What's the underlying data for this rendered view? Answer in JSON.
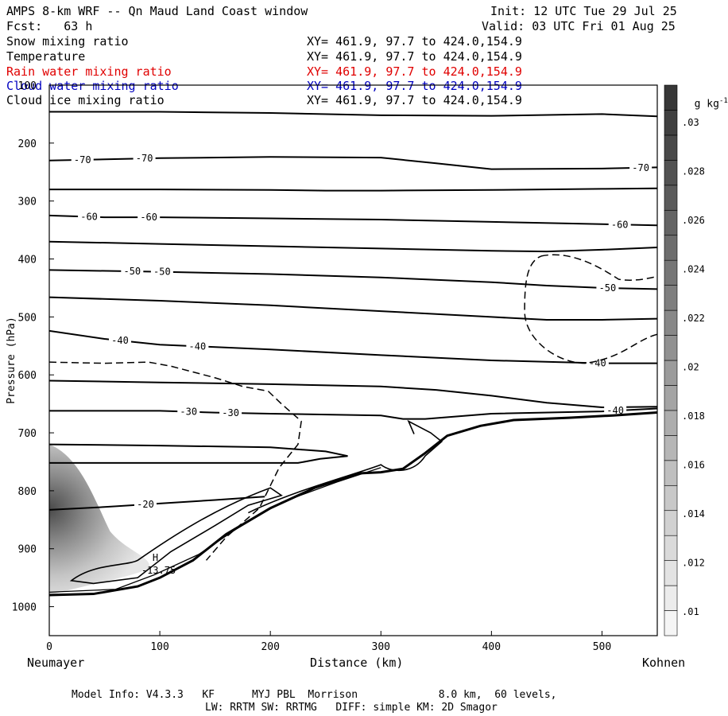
{
  "header": {
    "title": "AMPS 8-km WRF -- Qn Maud Land Coast window",
    "forecast": "Fcst:   63 h",
    "init": "Init: 12 UTC Tue 29 Jul 25",
    "valid": "Valid: 03 UTC Fri 01 Aug 25"
  },
  "fields": [
    {
      "name": "Snow mixing ratio",
      "xy": "XY= 461.9, 97.7 to 424.0,154.9",
      "color": "#000000"
    },
    {
      "name": "Temperature",
      "xy": "XY= 461.9, 97.7 to 424.0,154.9",
      "color": "#000000"
    },
    {
      "name": "Rain water mixing ratio",
      "xy": "XY= 461.9, 97.7 to 424.0,154.9",
      "color": "#e00000"
    },
    {
      "name": "Cloud water mixing ratio",
      "xy": "XY= 461.9, 97.7 to 424.0,154.9",
      "color": "#0000c0"
    },
    {
      "name": "Cloud ice mixing ratio",
      "xy": "XY= 461.9, 97.7 to 424.0,154.9",
      "color": "#000000"
    }
  ],
  "footer": {
    "line1": "Model Info: V4.3.3   KF      MYJ PBL  Morrison             8.0 km,  60 levels,",
    "line2": "LW: RRTM SW: RRTMG   DIFF: simple KM: 2D Smagor"
  },
  "chart_data": {
    "type": "contour",
    "xlabel": "Distance (km)",
    "ylabel": "Pressure (hPa)",
    "x_range": [
      0,
      550
    ],
    "y_range": [
      1050,
      100
    ],
    "x_ticks": [
      0,
      100,
      200,
      300,
      400,
      500
    ],
    "y_ticks": [
      100,
      200,
      300,
      400,
      500,
      600,
      700,
      800,
      900,
      1000
    ],
    "x_endpoints": {
      "left": "Neumayer",
      "right": "Kohnen"
    },
    "colorbar": {
      "unit_base": "g kg",
      "unit_exp": "-1",
      "tick_labels": [
        ".03",
        ".028",
        ".026",
        ".024",
        ".022",
        ".02",
        ".018",
        ".016",
        ".014",
        ".012",
        ".01"
      ],
      "tick_values": [
        0.03,
        0.028,
        0.026,
        0.024,
        0.022,
        0.02,
        0.018,
        0.016,
        0.014,
        0.012,
        0.01
      ],
      "range": [
        0.009,
        0.0315
      ]
    },
    "shading": {
      "field": "Snow mixing ratio",
      "max_center": [
        0,
        805
      ],
      "max_value": 0.029
    },
    "temperature_contours": [
      {
        "p": [
          146,
          146,
          148,
          152,
          153,
          150,
          154
        ],
        "x": [
          0,
          100,
          200,
          300,
          400,
          500,
          550
        ]
      },
      {
        "p": [
          230,
          226,
          224,
          225,
          235,
          245,
          244,
          242
        ],
        "x": [
          0,
          100,
          200,
          300,
          350,
          400,
          500,
          550
        ],
        "labels": [
          {
            "text": "-70",
            "x": 30
          },
          {
            "text": "-70",
            "x": 86
          },
          {
            "text": "-70",
            "x": 535
          }
        ]
      },
      {
        "p": [
          280,
          280,
          281,
          282,
          282,
          281,
          279,
          278
        ],
        "x": [
          0,
          100,
          200,
          250,
          300,
          400,
          500,
          550
        ]
      },
      {
        "p": [
          325,
          328,
          328,
          330,
          332,
          336,
          340,
          342
        ],
        "x": [
          0,
          50,
          100,
          200,
          300,
          400,
          500,
          550
        ],
        "labels": [
          {
            "text": "-60",
            "x": 36
          },
          {
            "text": "-60",
            "x": 90
          },
          {
            "text": "-60",
            "x": 516
          }
        ]
      },
      {
        "p": [
          370,
          374,
          378,
          382,
          386,
          387,
          384,
          380
        ],
        "x": [
          0,
          100,
          200,
          300,
          400,
          450,
          500,
          550
        ]
      },
      {
        "p": [
          419,
          422,
          426,
          432,
          440,
          446,
          450,
          452
        ],
        "x": [
          0,
          100,
          200,
          300,
          400,
          450,
          500,
          550
        ],
        "labels": [
          {
            "text": "-50",
            "x": 75
          },
          {
            "text": "-50",
            "x": 102
          },
          {
            "text": "-50",
            "x": 505
          }
        ]
      },
      {
        "p": [
          466,
          472,
          480,
          490,
          500,
          505,
          505,
          503
        ],
        "x": [
          0,
          100,
          200,
          300,
          400,
          450,
          500,
          550
        ]
      },
      {
        "p": [
          524,
          538,
          548,
          556,
          566,
          575,
          580,
          580
        ],
        "x": [
          0,
          50,
          100,
          200,
          300,
          400,
          500,
          550
        ],
        "labels": [
          {
            "text": "-40",
            "x": 64
          },
          {
            "text": "-40",
            "x": 134
          },
          {
            "text": "-40",
            "x": 496
          }
        ]
      },
      {
        "p": [
          610,
          613,
          616,
          620,
          626,
          636,
          648,
          656,
          655
        ],
        "x": [
          0,
          100,
          200,
          300,
          350,
          400,
          450,
          500,
          550
        ]
      },
      {
        "p": [
          662,
          662,
          665,
          667,
          670,
          676,
          676,
          667,
          663,
          658
        ],
        "x": [
          0,
          100,
          150,
          200,
          300,
          320,
          340,
          400,
          500,
          550
        ],
        "labels": [
          {
            "text": "-30",
            "x": 126
          },
          {
            "text": "-30",
            "x": 164
          },
          {
            "text": "-40",
            "x": 512
          }
        ]
      },
      {
        "p": [
          720,
          722,
          725,
          732,
          740,
          745,
          752,
          752
        ],
        "x": [
          0,
          100,
          200,
          250,
          270,
          245,
          225,
          0
        ]
      },
      {
        "p": [
          833,
          828,
          822,
          816,
          812,
          810
        ],
        "x": [
          0,
          50,
          100,
          150,
          180,
          195
        ],
        "labels": [
          {
            "text": "-20",
            "x": 87
          }
        ]
      }
    ],
    "extremum": {
      "label": "H",
      "value": "-13.75",
      "x": 96,
      "p": 935
    }
  }
}
